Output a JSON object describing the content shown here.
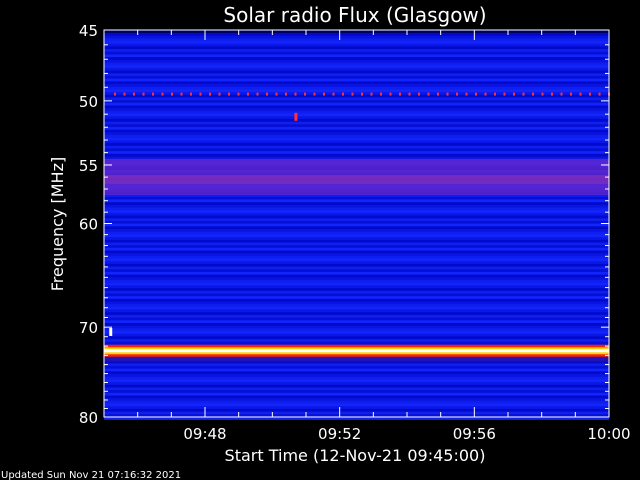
{
  "chart_data": {
    "type": "heatmap",
    "title": "Solar radio Flux (Glasgow)",
    "ylabel": "Frequency [MHz]",
    "xlabel": "Start Time (12-Nov-21 09:45:00)",
    "y_scale": "log",
    "ylim": [
      45,
      80
    ],
    "y_ticks": [
      "45",
      "50",
      "55",
      "60",
      "70",
      "80"
    ],
    "y_tick_values": [
      45,
      50,
      55,
      60,
      70,
      80
    ],
    "xlim_minutes": [
      0,
      15
    ],
    "x_ticks": [
      "09:48",
      "09:52",
      "09:56",
      "10:00"
    ],
    "x_tick_minutes": [
      3,
      7,
      11,
      15
    ],
    "colormap": [
      "#000044",
      "#0000cc",
      "#2040ff",
      "#9030c0",
      "#ff2020",
      "#ffd000",
      "#ffffff"
    ],
    "features": [
      {
        "type": "band",
        "freq_mhz": [
          54.5,
          57.5
        ],
        "level": "purple"
      },
      {
        "type": "dotted-line",
        "freq_mhz": 49.5,
        "color": "#ff3030"
      },
      {
        "type": "intense-band",
        "freq_mhz": 72.5,
        "colors": [
          "#ff2000",
          "#ffd000",
          "#ffffff"
        ]
      },
      {
        "type": "spot",
        "freq_mhz": 51.2,
        "minute": 5.7,
        "color": "#ff3030"
      },
      {
        "type": "spot",
        "freq_mhz": 70.5,
        "minute": 0.2,
        "color": "#ffffff"
      }
    ]
  },
  "footer": {
    "updated": "Updated Sun Nov 21 07:16:32 2021"
  }
}
